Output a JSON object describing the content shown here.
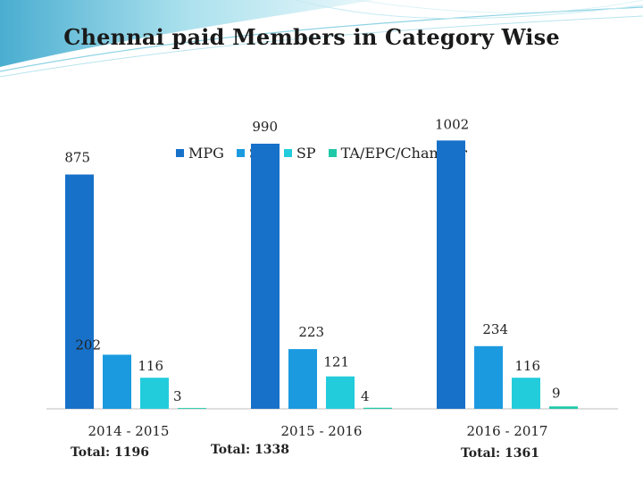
{
  "title": "Chennai paid Members in Category Wise",
  "chart_data": {
    "type": "bar",
    "categories": [
      "2014 - 2015",
      "2015 - 2016",
      "2016 - 2017"
    ],
    "totals": [
      "Total: 1196",
      "Total: 1338",
      "Total: 1361"
    ],
    "series": [
      {
        "name": "MPG",
        "color": "#1771c9",
        "values": [
          875,
          990,
          1002
        ]
      },
      {
        "name": "SH",
        "color": "#1b9ae0",
        "values": [
          202,
          223,
          234
        ]
      },
      {
        "name": "SP",
        "color": "#22ccdb",
        "values": [
          116,
          121,
          116
        ]
      },
      {
        "name": "TA/EPC/Chamber",
        "color": "#1fc9a8",
        "values": [
          3,
          4,
          9
        ]
      }
    ],
    "ylim": [
      0,
      1100
    ],
    "grid": false,
    "legend_position": "top"
  }
}
